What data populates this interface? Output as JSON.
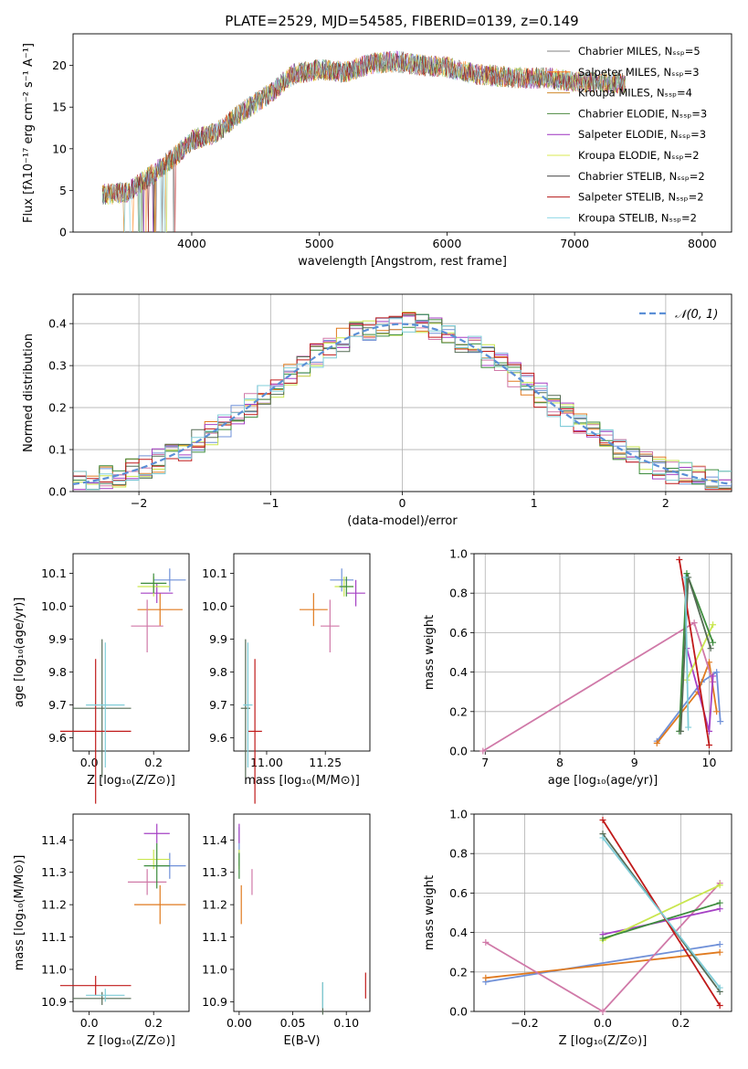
{
  "colors": [
    "#808080",
    "#ff7f0e",
    "#d08a2c",
    "#4c8a3f",
    "#9b30c0",
    "#d9ea52",
    "#404040",
    "#b41616",
    "#8fd8e6"
  ],
  "sub_colors": [
    "#6f90d8",
    "#e07a1f",
    "#d079a8",
    "#a540c4",
    "#c9e64f",
    "#3d8c3d",
    "#556b55",
    "#c01a1a",
    "#7fcdd8"
  ],
  "chart_data": [
    {
      "type": "line",
      "title": "PLATE=2529, MJD=54585, FIBERID=0139, z=0.149",
      "xlabel": "wavelength [Angstrom, rest frame]",
      "ylabel": "Flux [fλ10⁻¹⁷ erg cm⁻² s⁻¹ A⁻¹]",
      "xlim": [
        3070,
        8230
      ],
      "ylim": [
        0,
        23.8
      ],
      "xticks": [
        "4000",
        "5000",
        "6000",
        "7000",
        "8000"
      ],
      "yticks": [
        "0",
        "5",
        "10",
        "15",
        "20"
      ],
      "legend_position": "top-right",
      "spectrum_envelope": {
        "x": [
          3300,
          3500,
          3700,
          3900,
          4000,
          4200,
          4400,
          4600,
          4800,
          5000,
          5200,
          5400,
          5600,
          5800,
          6000,
          6200,
          6400,
          6600,
          6800,
          7000,
          7200,
          7400
        ],
        "y": [
          4.5,
          4.8,
          7.0,
          9.5,
          11.0,
          12.0,
          14.5,
          16.5,
          19.0,
          19.5,
          19.2,
          20.2,
          20.5,
          20.0,
          19.8,
          19.0,
          18.7,
          18.5,
          18.5,
          18.0,
          18.0,
          17.8
        ]
      },
      "series": [
        {
          "name": "Chabrier MILES, N_SSP=5"
        },
        {
          "name": "Salpeter MILES, N_SSP=3"
        },
        {
          "name": "Kroupa MILES, N_SSP=4"
        },
        {
          "name": "Chabrier ELODIE, N_SSP=3"
        },
        {
          "name": "Salpeter ELODIE, N_SSP=3"
        },
        {
          "name": "Kroupa ELODIE, N_SSP=2"
        },
        {
          "name": "Chabrier STELIB, N_SSP=2"
        },
        {
          "name": "Salpeter STELIB, N_SSP=2"
        },
        {
          "name": "Kroupa STELIB, N_SSP=2"
        }
      ]
    },
    {
      "type": "line",
      "xlabel": "(data-model)/error",
      "ylabel": "Normed distribution",
      "xlim": [
        -2.5,
        2.5
      ],
      "ylim": [
        0,
        0.47
      ],
      "xticks": [
        "−2",
        "−1",
        "0",
        "1",
        "2"
      ],
      "yticks": [
        "0.0",
        "0.1",
        "0.2",
        "0.3",
        "0.4"
      ],
      "grid": true,
      "legend_position": "top-right",
      "reference_curve": "𝒩(0, 1)",
      "histogram_bin_width": 0.1
    },
    {
      "type": "scatter",
      "xlabel": "Z [log₁₀(Z/Z⊙)]",
      "ylabel": "age  [log₁₀(age/yr)]",
      "xlim": [
        -0.05,
        0.31
      ],
      "ylim": [
        9.56,
        10.16
      ],
      "xticks": [
        "0.0",
        "0.2"
      ],
      "yticks": [
        "9.6",
        "9.7",
        "9.8",
        "9.9",
        "10.0",
        "10.1"
      ],
      "points": [
        {
          "x": 0.25,
          "y": 10.08,
          "xerr": 0.05,
          "yerr": 0.035
        },
        {
          "x": 0.22,
          "y": 9.99,
          "xerr": 0.07,
          "yerr": 0.05
        },
        {
          "x": 0.18,
          "y": 9.94,
          "xerr": 0.05,
          "yerr": 0.08
        },
        {
          "x": 0.21,
          "y": 10.04,
          "xerr": 0.05,
          "yerr": 0.03
        },
        {
          "x": 0.2,
          "y": 10.06,
          "xerr": 0.05,
          "yerr": 0.03
        },
        {
          "x": 0.2,
          "y": 10.07,
          "xerr": 0.04,
          "yerr": 0.03
        },
        {
          "x": 0.04,
          "y": 9.69,
          "xerr": 0.09,
          "yerr": 0.21
        },
        {
          "x": 0.02,
          "y": 9.62,
          "xerr": 0.11,
          "yerr": 0.22
        },
        {
          "x": 0.05,
          "y": 9.7,
          "xerr": 0.06,
          "yerr": 0.19
        }
      ]
    },
    {
      "type": "scatter",
      "xlabel": "mass [log₁₀(M/M⊙)]",
      "xlim": [
        10.86,
        11.44
      ],
      "ylim": [
        9.56,
        10.16
      ],
      "xticks": [
        "11.00",
        "11.25"
      ],
      "yticks": [
        "9.6",
        "9.7",
        "9.8",
        "9.9",
        "10.0",
        "10.1"
      ],
      "points": [
        {
          "x": 11.32,
          "y": 10.08,
          "xerr": 0.05,
          "yerr": 0.035
        },
        {
          "x": 11.2,
          "y": 9.99,
          "xerr": 0.06,
          "yerr": 0.05
        },
        {
          "x": 11.27,
          "y": 9.94,
          "xerr": 0.04,
          "yerr": 0.08
        },
        {
          "x": 11.38,
          "y": 10.04,
          "xerr": 0.04,
          "yerr": 0.04
        },
        {
          "x": 11.33,
          "y": 10.06,
          "xerr": 0.04,
          "yerr": 0.03
        },
        {
          "x": 11.34,
          "y": 10.06,
          "xerr": 0.03,
          "yerr": 0.03
        },
        {
          "x": 10.91,
          "y": 9.69,
          "xerr": 0.02,
          "yerr": 0.21
        },
        {
          "x": 10.95,
          "y": 9.62,
          "xerr": 0.03,
          "yerr": 0.22
        },
        {
          "x": 10.92,
          "y": 9.7,
          "xerr": 0.02,
          "yerr": 0.19
        }
      ]
    },
    {
      "type": "line",
      "xlabel": "age  [log₁₀(age/yr)]",
      "ylabel": "mass weight",
      "xlim": [
        6.85,
        10.3
      ],
      "ylim": [
        0,
        1.0
      ],
      "xticks": [
        "7",
        "8",
        "9",
        "10"
      ],
      "yticks": [
        "0.0",
        "0.2",
        "0.4",
        "0.6",
        "0.8",
        "1.0"
      ],
      "grid": true,
      "series": [
        {
          "x": [
            9.3,
            9.9,
            10.1,
            10.15
          ],
          "y": [
            0.05,
            0.35,
            0.4,
            0.15
          ]
        },
        {
          "x": [
            9.3,
            9.85,
            10.0,
            10.1
          ],
          "y": [
            0.04,
            0.3,
            0.45,
            0.2
          ]
        },
        {
          "x": [
            6.97,
            9.8,
            10.05
          ],
          "y": [
            0.0,
            0.65,
            0.35
          ]
        },
        {
          "x": [
            9.7,
            10.0,
            10.05
          ],
          "y": [
            0.52,
            0.1,
            0.38
          ]
        },
        {
          "x": [
            9.7,
            10.05
          ],
          "y": [
            0.36,
            0.64
          ]
        },
        {
          "x": [
            9.6,
            9.7,
            10.05
          ],
          "y": [
            0.1,
            0.9,
            0.55
          ]
        },
        {
          "x": [
            9.62,
            9.72,
            10.02
          ],
          "y": [
            0.1,
            0.88,
            0.52
          ]
        },
        {
          "x": [
            9.6,
            10.0
          ],
          "y": [
            0.97,
            0.03
          ]
        },
        {
          "x": [
            9.68,
            9.72
          ],
          "y": [
            0.88,
            0.12
          ]
        }
      ]
    },
    {
      "type": "scatter",
      "xlabel": "Z [log₁₀(Z/Z⊙)]",
      "ylabel": "mass [log₁₀(M/M⊙)]",
      "xlim": [
        -0.05,
        0.31
      ],
      "ylim": [
        10.87,
        11.48
      ],
      "xticks": [
        "0.0",
        "0.2"
      ],
      "yticks": [
        "10.9",
        "11.0",
        "11.1",
        "11.2",
        "11.3",
        "11.4"
      ],
      "points": [
        {
          "x": 0.25,
          "y": 11.32,
          "xerr": 0.05,
          "yerr": 0.04
        },
        {
          "x": 0.22,
          "y": 11.2,
          "xerr": 0.08,
          "yerr": 0.06
        },
        {
          "x": 0.18,
          "y": 11.27,
          "xerr": 0.06,
          "yerr": 0.04
        },
        {
          "x": 0.21,
          "y": 11.42,
          "xerr": 0.04,
          "yerr": 0.03
        },
        {
          "x": 0.2,
          "y": 11.34,
          "xerr": 0.05,
          "yerr": 0.03
        },
        {
          "x": 0.21,
          "y": 11.32,
          "xerr": 0.04,
          "yerr": 0.07
        },
        {
          "x": 0.04,
          "y": 10.91,
          "xerr": 0.09,
          "yerr": 0.02
        },
        {
          "x": 0.02,
          "y": 10.95,
          "xerr": 0.11,
          "yerr": 0.03
        },
        {
          "x": 0.05,
          "y": 10.92,
          "xerr": 0.06,
          "yerr": 0.02
        }
      ]
    },
    {
      "type": "scatter",
      "xlabel": "E(B-V)",
      "xlim": [
        -0.005,
        0.122
      ],
      "ylim": [
        10.87,
        11.48
      ],
      "xticks": [
        "0.00",
        "0.05",
        "0.10"
      ],
      "yticks": [
        "10.9",
        "11.0",
        "11.1",
        "11.2",
        "11.3",
        "11.4"
      ],
      "points": [
        {
          "x": 0.0,
          "y": 11.38,
          "xerr": 0,
          "yerr": 0.06
        },
        {
          "x": 0.002,
          "y": 11.2,
          "xerr": 0,
          "yerr": 0.06
        },
        {
          "x": 0.012,
          "y": 11.27,
          "xerr": 0,
          "yerr": 0.04
        },
        {
          "x": 0.0,
          "y": 11.42,
          "xerr": 0,
          "yerr": 0.03
        },
        {
          "x": 0.0,
          "y": 11.34,
          "xerr": 0,
          "yerr": 0.03
        },
        {
          "x": 0.0,
          "y": 11.32,
          "xerr": 0,
          "yerr": 0.04
        },
        {
          "x": 0.078,
          "y": 10.91,
          "xerr": 0,
          "yerr": 0.05
        },
        {
          "x": 0.118,
          "y": 10.95,
          "xerr": 0,
          "yerr": 0.04
        },
        {
          "x": 0.078,
          "y": 10.92,
          "xerr": 0,
          "yerr": 0.04
        }
      ]
    },
    {
      "type": "line",
      "xlabel": "Z [log₁₀(Z/Z⊙)]",
      "ylabel": "mass weight",
      "xlim": [
        -0.33,
        0.33
      ],
      "ylim": [
        0,
        1.0
      ],
      "xticks": [
        "−0.2",
        "0.0",
        "0.2"
      ],
      "yticks": [
        "0.0",
        "0.2",
        "0.4",
        "0.6",
        "0.8",
        "1.0"
      ],
      "grid": true,
      "series": [
        {
          "x": [
            -0.3,
            0.3
          ],
          "y": [
            0.15,
            0.34
          ]
        },
        {
          "x": [
            -0.3,
            0.3
          ],
          "y": [
            0.17,
            0.3
          ]
        },
        {
          "x": [
            -0.3,
            0.0,
            0.3
          ],
          "y": [
            0.35,
            0.0,
            0.65
          ]
        },
        {
          "x": [
            0.0,
            0.3
          ],
          "y": [
            0.39,
            0.52
          ]
        },
        {
          "x": [
            0.0,
            0.3
          ],
          "y": [
            0.36,
            0.64
          ]
        },
        {
          "x": [
            0.0,
            0.3
          ],
          "y": [
            0.37,
            0.55
          ]
        },
        {
          "x": [
            0.0,
            0.3
          ],
          "y": [
            0.9,
            0.1
          ]
        },
        {
          "x": [
            0.0,
            0.3
          ],
          "y": [
            0.97,
            0.03
          ]
        },
        {
          "x": [
            0.0,
            0.3
          ],
          "y": [
            0.88,
            0.12
          ]
        }
      ]
    }
  ]
}
